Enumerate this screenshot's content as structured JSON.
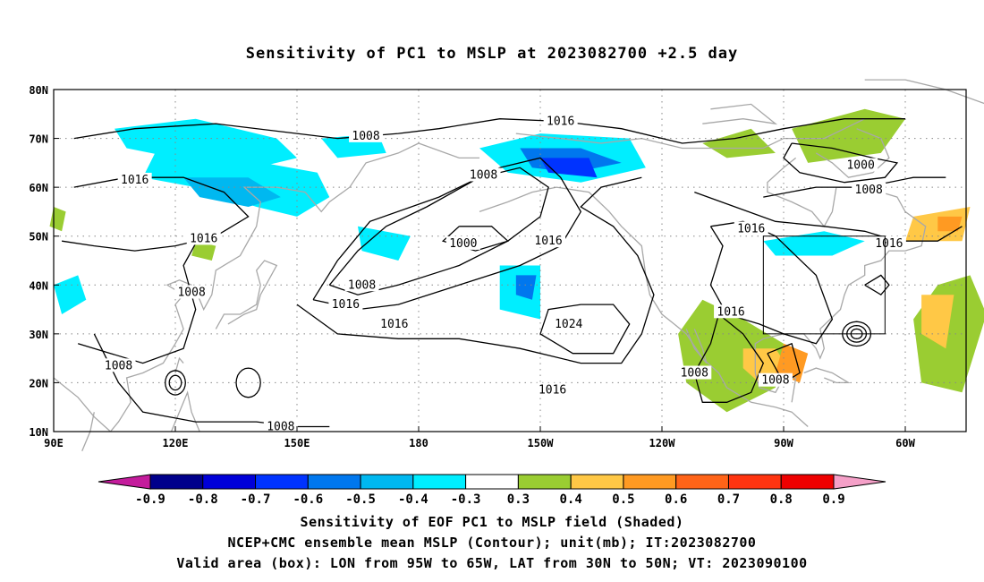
{
  "title": "Sensitivity of PC1 to MSLP at 2023082700 +2.5 day",
  "map": {
    "lat_labels": [
      "80N",
      "70N",
      "60N",
      "50N",
      "40N",
      "30N",
      "20N",
      "10N"
    ],
    "lon_labels": [
      "90E",
      "120E",
      "150E",
      "180",
      "150W",
      "120W",
      "90W",
      "60W"
    ],
    "lon_range_deg_east": [
      90,
      315
    ],
    "lat_range_deg": [
      10,
      80
    ],
    "valid_box": {
      "lon": [
        -95,
        -65
      ],
      "lat": [
        30,
        50
      ]
    },
    "contour_labels": [
      {
        "value": "1008",
        "lon": 167,
        "lat": 70.5
      },
      {
        "value": "1016",
        "lon": -145,
        "lat": 73.5
      },
      {
        "value": "1016",
        "lon": 110,
        "lat": 61.5
      },
      {
        "value": "1008",
        "lon": -164,
        "lat": 62.5
      },
      {
        "value": "1000",
        "lon": -71,
        "lat": 64.5
      },
      {
        "value": "1008",
        "lon": -69,
        "lat": 59.5
      },
      {
        "value": "1016",
        "lon": -98,
        "lat": 51.5
      },
      {
        "value": "1016",
        "lon": -64,
        "lat": 48.5
      },
      {
        "value": "1016",
        "lon": 127,
        "lat": 49.5
      },
      {
        "value": "1000",
        "lon": -169,
        "lat": 48.5
      },
      {
        "value": "1016",
        "lon": -148,
        "lat": 49.0
      },
      {
        "value": "1008",
        "lon": 124,
        "lat": 38.5
      },
      {
        "value": "1008",
        "lon": 166,
        "lat": 40.0
      },
      {
        "value": "1016",
        "lon": 162,
        "lat": 36.0
      },
      {
        "value": "1016",
        "lon": 174,
        "lat": 32.0
      },
      {
        "value": "1024",
        "lon": -143,
        "lat": 32.0
      },
      {
        "value": "1016",
        "lon": -103,
        "lat": 34.5
      },
      {
        "value": "1008",
        "lon": 106,
        "lat": 23.5
      },
      {
        "value": "1008",
        "lon": -112,
        "lat": 22.0
      },
      {
        "value": "1008",
        "lon": -92,
        "lat": 20.5
      },
      {
        "value": "1016",
        "lon": -147,
        "lat": 18.5
      },
      {
        "value": "1008",
        "lon": 146,
        "lat": 11.0
      }
    ]
  },
  "colorbar": {
    "labels": [
      "-0.9",
      "-0.8",
      "-0.7",
      "-0.6",
      "-0.5",
      "-0.4",
      "-0.3",
      "0.3",
      "0.4",
      "0.5",
      "0.6",
      "0.7",
      "0.8",
      "0.9"
    ],
    "colors": [
      "#00008b",
      "#0000d8",
      "#0033ff",
      "#0077ee",
      "#00b8f0",
      "#00eeff",
      "#ffffff",
      "#9acd32",
      "#ffc846",
      "#ff9a22",
      "#ff6418",
      "#ff3410",
      "#ee0000"
    ],
    "under_color": "#c41c9c",
    "over_color": "#f5a0c8"
  },
  "captions": [
    "Sensitivity of EOF PC1 to MSLP field (Shaded)",
    "NCEP+CMC ensemble mean MSLP (Contour); unit(mb); IT:2023082700",
    "Valid area (box): LON from 95W to 65W, LAT from 30N to 50N; VT: 2023090100"
  ]
}
